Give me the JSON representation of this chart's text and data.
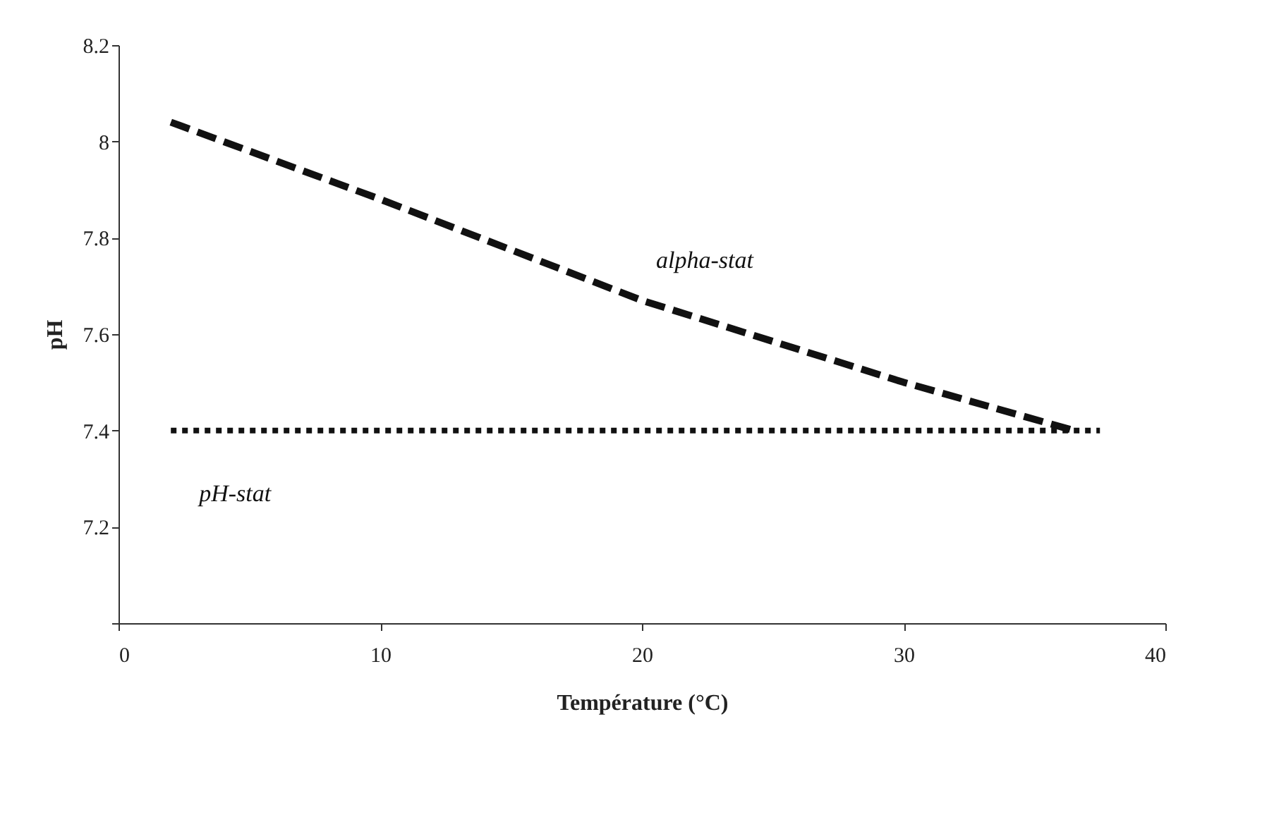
{
  "chart_data": {
    "type": "line",
    "xlabel": "Température (°C)",
    "ylabel": "pH",
    "xlim": [
      0,
      40
    ],
    "xticks": [
      0,
      10,
      20,
      30,
      40
    ],
    "ylim": [
      7,
      8.2
    ],
    "yticks": [
      {
        "value": 7,
        "label": null
      },
      7.2,
      7.4,
      7.6,
      7.8,
      8,
      8.2
    ],
    "grid": false,
    "series": [
      {
        "name": "alpha-stat",
        "color": "#111111",
        "line_style": "dashed",
        "x": [
          2,
          10,
          20,
          30,
          36.5
        ],
        "values": [
          8.04,
          7.88,
          7.67,
          7.5,
          7.4
        ]
      },
      {
        "name": "pH-stat",
        "color": "#111111",
        "line_style": "dotted",
        "x": [
          2,
          37.5
        ],
        "values": [
          7.4,
          7.4
        ]
      }
    ]
  }
}
